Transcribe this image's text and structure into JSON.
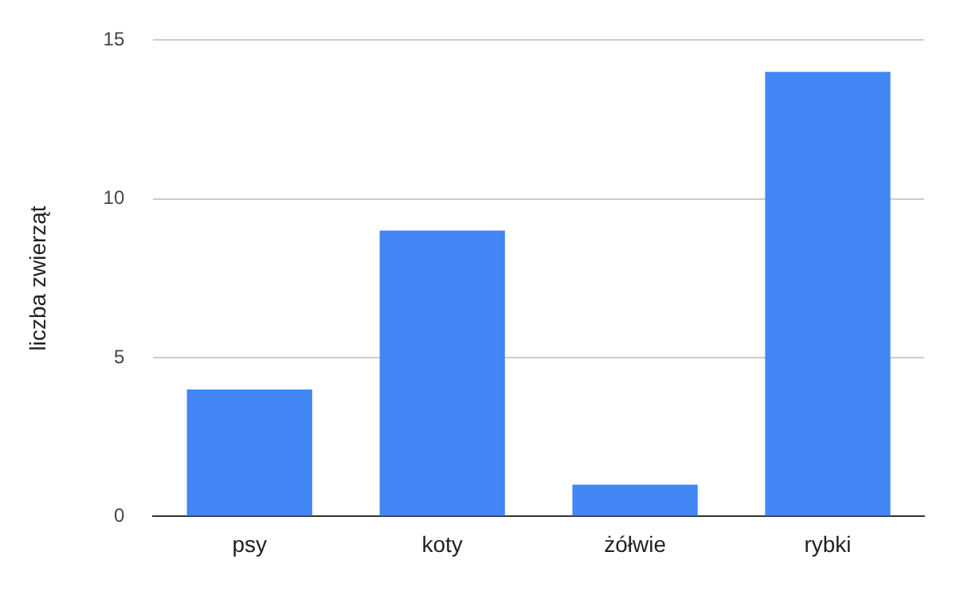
{
  "chart_data": {
    "type": "bar",
    "ylabel": "liczba zwierząt",
    "categories": [
      "psy",
      "koty",
      "żółwie",
      "rybki"
    ],
    "values": [
      4,
      9,
      1,
      14
    ],
    "color": "#4285f4",
    "ylim": [
      0,
      15
    ],
    "yticks": [
      0,
      5,
      10,
      15
    ],
    "grid": "y"
  }
}
